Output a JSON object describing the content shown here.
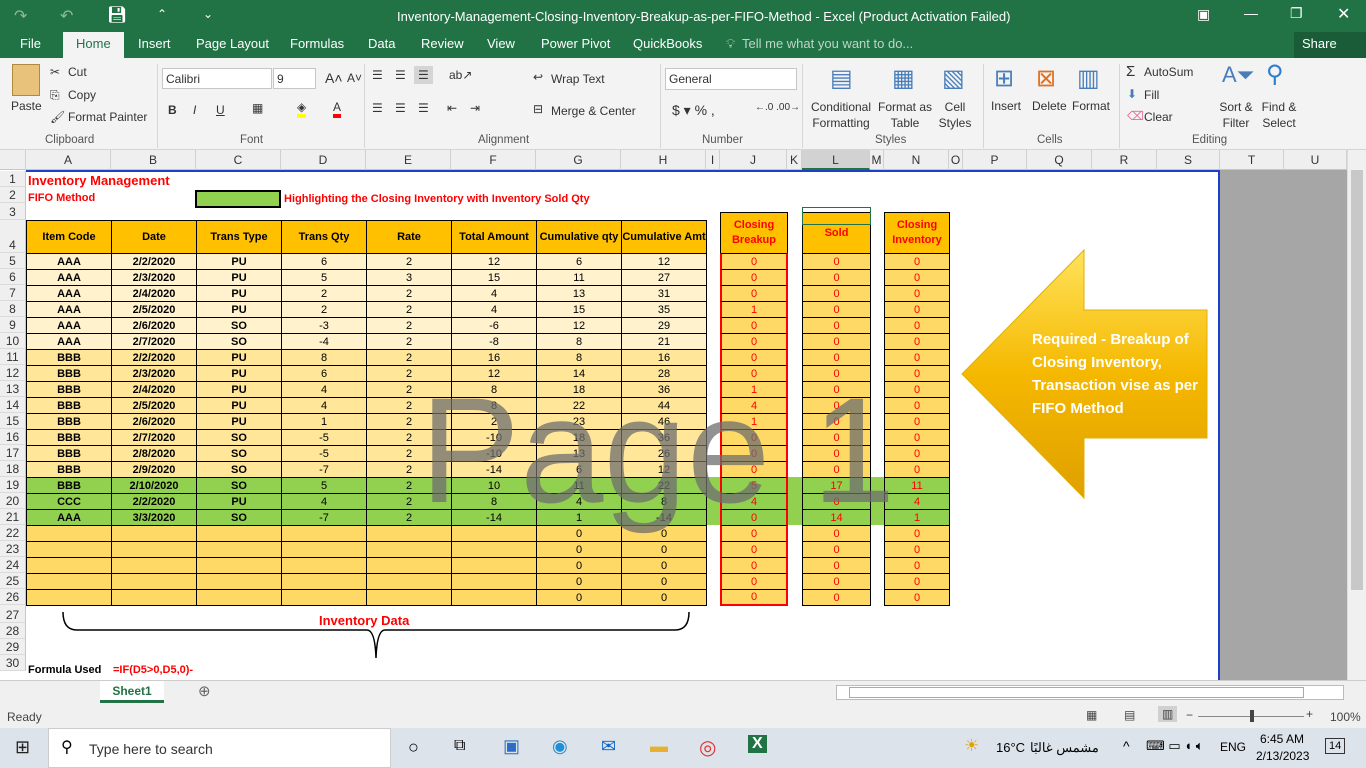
{
  "window": {
    "title": "Inventory-Management-Closing-Inventory-Breakup-as-per-FIFO-Method - Excel (Product Activation Failed)"
  },
  "ribbon_tabs": [
    "File",
    "Home",
    "Insert",
    "Page Layout",
    "Formulas",
    "Data",
    "Review",
    "View",
    "Power Pivot",
    "QuickBooks"
  ],
  "tell_me": "Tell me what you want to do...",
  "share": "Share",
  "ribbon": {
    "paste": "Paste",
    "cut": "Cut",
    "copy": "Copy",
    "format_painter": "Format Painter",
    "clipboard": "Clipboard",
    "font_name": "Calibri",
    "font_size": "9",
    "bold": "B",
    "italic": "I",
    "underline": "U",
    "font": "Font",
    "wrap_text": "Wrap Text",
    "merge_center": "Merge & Center",
    "alignment": "Alignment",
    "number_format": "General",
    "number": "Number",
    "conditional_formatting": "Conditional Formatting",
    "format_as_table": "Format as Table",
    "cell_styles": "Cell Styles",
    "styles": "Styles",
    "insert": "Insert",
    "delete": "Delete",
    "format": "Format",
    "cells": "Cells",
    "autosum": "AutoSum",
    "fill": "Fill",
    "clear": "Clear",
    "sort_filter": "Sort & Filter",
    "find_select": "Find & Select",
    "editing": "Editing"
  },
  "columns": [
    "A",
    "B",
    "C",
    "D",
    "E",
    "F",
    "G",
    "H",
    "I",
    "J",
    "K",
    "L",
    "M",
    "N",
    "O",
    "P",
    "Q",
    "R",
    "S",
    "T",
    "U"
  ],
  "sheet": {
    "title": "Inventory Management",
    "subtitle": "FIFO Method",
    "legend_text": "Highlighting the Closing Inventory with Inventory Sold Qty",
    "headers": [
      "Item Code",
      "Date",
      "Trans Type",
      "Trans Qty",
      "Rate",
      "Total Amount",
      "Cumulative qty",
      "Cumulative Amt"
    ],
    "closing_breakup_header": "Closing Breakup",
    "sold_header": "Sold",
    "closing_inventory_header": "Closing Inventory",
    "rows": [
      [
        "AAA",
        "2/2/2020",
        "PU",
        "6",
        "2",
        "12",
        "6",
        "12",
        "0",
        "0",
        "0"
      ],
      [
        "AAA",
        "2/3/2020",
        "PU",
        "5",
        "3",
        "15",
        "11",
        "27",
        "0",
        "0",
        "0"
      ],
      [
        "AAA",
        "2/4/2020",
        "PU",
        "2",
        "2",
        "4",
        "13",
        "31",
        "0",
        "0",
        "0"
      ],
      [
        "AAA",
        "2/5/2020",
        "PU",
        "2",
        "2",
        "4",
        "15",
        "35",
        "1",
        "0",
        "0"
      ],
      [
        "AAA",
        "2/6/2020",
        "SO",
        "-3",
        "2",
        "-6",
        "12",
        "29",
        "0",
        "0",
        "0"
      ],
      [
        "AAA",
        "2/7/2020",
        "SO",
        "-4",
        "2",
        "-8",
        "8",
        "21",
        "0",
        "0",
        "0"
      ],
      [
        "BBB",
        "2/2/2020",
        "PU",
        "8",
        "2",
        "16",
        "8",
        "16",
        "0",
        "0",
        "0"
      ],
      [
        "BBB",
        "2/3/2020",
        "PU",
        "6",
        "2",
        "12",
        "14",
        "28",
        "0",
        "0",
        "0"
      ],
      [
        "BBB",
        "2/4/2020",
        "PU",
        "4",
        "2",
        "8",
        "18",
        "36",
        "1",
        "0",
        "0"
      ],
      [
        "BBB",
        "2/5/2020",
        "PU",
        "4",
        "2",
        "8",
        "22",
        "44",
        "4",
        "0",
        "0"
      ],
      [
        "BBB",
        "2/6/2020",
        "PU",
        "1",
        "2",
        "2",
        "23",
        "46",
        "1",
        "0",
        "0"
      ],
      [
        "BBB",
        "2/7/2020",
        "SO",
        "-5",
        "2",
        "-10",
        "18",
        "36",
        "0",
        "0",
        "0"
      ],
      [
        "BBB",
        "2/8/2020",
        "SO",
        "-5",
        "2",
        "-10",
        "13",
        "26",
        "0",
        "0",
        "0"
      ],
      [
        "BBB",
        "2/9/2020",
        "SO",
        "-7",
        "2",
        "-14",
        "6",
        "12",
        "0",
        "0",
        "0"
      ],
      [
        "BBB",
        "2/10/2020",
        "SO",
        "5",
        "2",
        "10",
        "11",
        "22",
        "5",
        "17",
        "11"
      ],
      [
        "CCC",
        "2/2/2020",
        "PU",
        "4",
        "2",
        "8",
        "4",
        "8",
        "4",
        "0",
        "4"
      ],
      [
        "AAA",
        "3/3/2020",
        "SO",
        "-7",
        "2",
        "-14",
        "1",
        "-14",
        "0",
        "14",
        "1"
      ],
      [
        "",
        "",
        "",
        "",
        "",
        "",
        "0",
        "0",
        "0",
        "0",
        "0"
      ],
      [
        "",
        "",
        "",
        "",
        "",
        "",
        "0",
        "0",
        "0",
        "0",
        "0"
      ],
      [
        "",
        "",
        "",
        "",
        "",
        "",
        "0",
        "0",
        "0",
        "0",
        "0"
      ],
      [
        "",
        "",
        "",
        "",
        "",
        "",
        "0",
        "0",
        "0",
        "0",
        "0"
      ],
      [
        "",
        "",
        "",
        "",
        "",
        "",
        "0",
        "0",
        "0",
        "0",
        "0"
      ]
    ],
    "inventory_data_label": "Inventory Data",
    "formula_label": "Formula Used",
    "formula": "=IF(D5>0,D5,0)-",
    "watermark": "Page 1",
    "callout": "Required - Breakup of Closing Inventory, Transaction vise as per FIFO Method"
  },
  "colors": {
    "header": "#ffc000",
    "light": "#fff2cc",
    "mid": "#ffe699",
    "highlight": "#92d050",
    "empty": "#ffd966",
    "red": "#ff0000",
    "excel_green": "#217346"
  },
  "sheet_tab": "Sheet1",
  "status": {
    "ready": "Ready",
    "zoom": "100%"
  },
  "taskbar": {
    "search": "Type here to search",
    "weather": "16°C",
    "weather_desc": "مشمس غالبًا",
    "lang": "ENG",
    "time": "6:45 AM",
    "date": "2/13/2023",
    "notifications": "14"
  }
}
